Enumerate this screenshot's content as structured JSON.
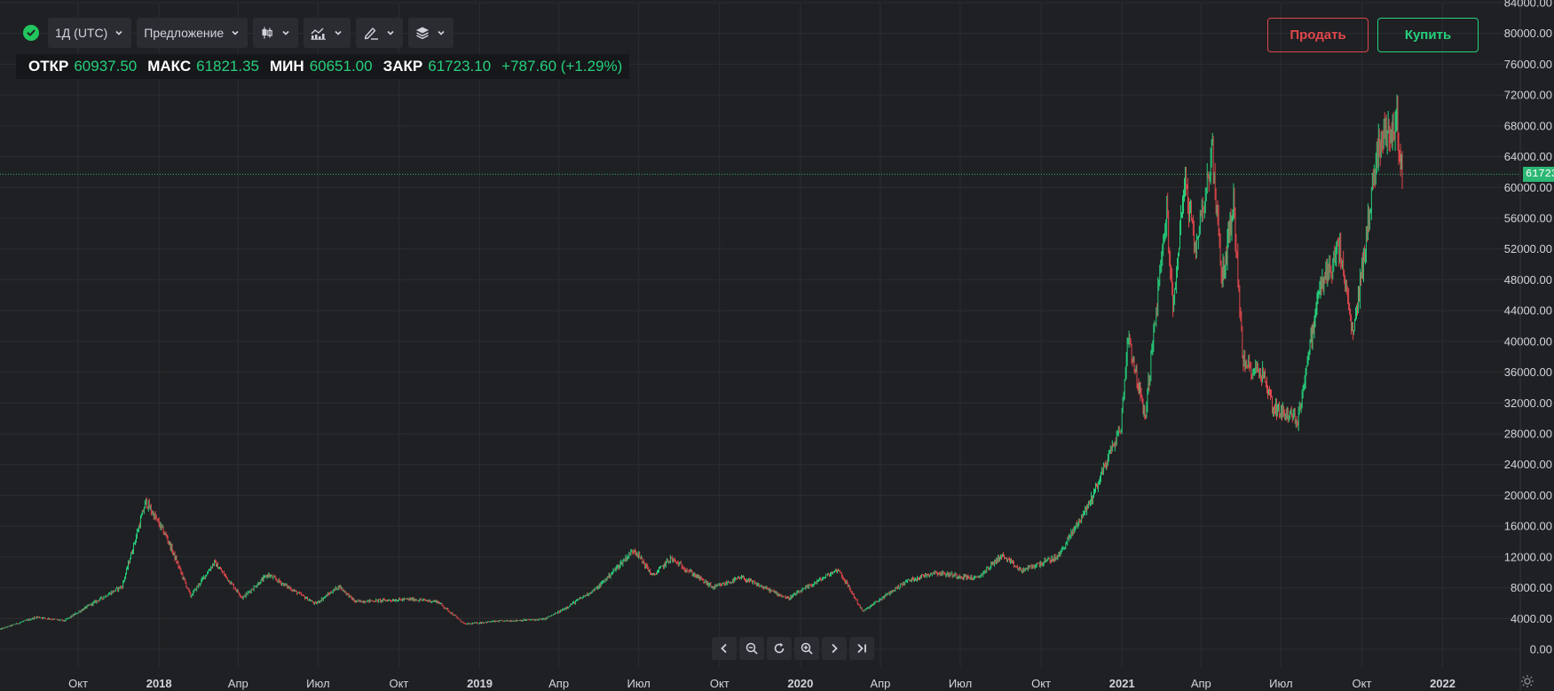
{
  "toolbar": {
    "status_icon": "check-circle-icon",
    "interval_label": "1Д (UTC)",
    "price_type_label": "Предложение",
    "chart_type_icon": "candlestick-icon",
    "indicators_icon": "indicators-icon",
    "drawing_icon": "pen-icon",
    "layers_icon": "layers-icon"
  },
  "ohlc": {
    "open_label": "ОТКР",
    "open_value": "60937.50",
    "high_label": "МАКС",
    "high_value": "61821.35",
    "low_label": "МИН",
    "low_value": "60651.00",
    "close_label": "ЗАКР",
    "close_value": "61723.10",
    "change": "+787.60 (+1.29%)"
  },
  "buttons": {
    "sell": "Продать",
    "buy": "Купить"
  },
  "colors": {
    "up": "#26d07c",
    "down": "#e0474c",
    "background": "#1f2023"
  },
  "last_price": "61723.10",
  "navigation": {
    "icons": [
      "chevron-left-icon",
      "zoom-out-icon",
      "reset-icon",
      "zoom-in-icon",
      "chevron-right-icon",
      "go-to-end-icon"
    ]
  },
  "chart_data": {
    "type": "candlestick",
    "title": "",
    "xlabel": "",
    "ylabel": "",
    "ylim": [
      0,
      84000
    ],
    "y_ticks": [
      "84000.00",
      "80000.00",
      "76000.00",
      "72000.00",
      "68000.00",
      "64000.00",
      "60000.00",
      "56000.00",
      "52000.00",
      "48000.00",
      "44000.00",
      "40000.00",
      "36000.00",
      "32000.00",
      "28000.00",
      "24000.00",
      "20000.00",
      "16000.00",
      "12000.00",
      "8000.00",
      "4000.00",
      "0.00"
    ],
    "x_ticks": [
      {
        "label": "Окт",
        "date": "2017-10"
      },
      {
        "label": "2018",
        "date": "2018-01",
        "bold": true
      },
      {
        "label": "Апр",
        "date": "2018-04"
      },
      {
        "label": "Июл",
        "date": "2018-07"
      },
      {
        "label": "Окт",
        "date": "2018-10"
      },
      {
        "label": "2019",
        "date": "2019-01",
        "bold": true
      },
      {
        "label": "Апр",
        "date": "2019-04"
      },
      {
        "label": "Июл",
        "date": "2019-07"
      },
      {
        "label": "Окт",
        "date": "2019-10"
      },
      {
        "label": "2020",
        "date": "2020-01",
        "bold": true
      },
      {
        "label": "Апр",
        "date": "2020-04"
      },
      {
        "label": "Июл",
        "date": "2020-07"
      },
      {
        "label": "Окт",
        "date": "2020-10"
      },
      {
        "label": "2021",
        "date": "2021-01",
        "bold": true
      },
      {
        "label": "Апр",
        "date": "2021-04"
      },
      {
        "label": "Июл",
        "date": "2021-07"
      },
      {
        "label": "Окт",
        "date": "2021-10"
      },
      {
        "label": "2022",
        "date": "2022-01",
        "bold": true
      }
    ],
    "x_range": [
      "2017-07-04",
      "2021-11-16"
    ],
    "last_close": 61723.1,
    "price_path": [
      [
        "2017-07-04",
        2600
      ],
      [
        "2017-08-15",
        4200
      ],
      [
        "2017-09-15",
        3700
      ],
      [
        "2017-10-15",
        5800
      ],
      [
        "2017-11-20",
        8200
      ],
      [
        "2017-12-17",
        19200
      ],
      [
        "2018-01-10",
        14500
      ],
      [
        "2018-02-06",
        6900
      ],
      [
        "2018-03-05",
        11300
      ],
      [
        "2018-04-06",
        6700
      ],
      [
        "2018-05-05",
        9700
      ],
      [
        "2018-06-28",
        5900
      ],
      [
        "2018-07-25",
        8200
      ],
      [
        "2018-08-12",
        6200
      ],
      [
        "2018-10-15",
        6500
      ],
      [
        "2018-11-14",
        6200
      ],
      [
        "2018-12-15",
        3250
      ],
      [
        "2019-01-15",
        3600
      ],
      [
        "2019-03-15",
        3900
      ],
      [
        "2019-04-02",
        4900
      ],
      [
        "2019-05-15",
        8000
      ],
      [
        "2019-06-26",
        13000
      ],
      [
        "2019-07-17",
        9500
      ],
      [
        "2019-08-06",
        11800
      ],
      [
        "2019-09-24",
        8000
      ],
      [
        "2019-10-26",
        9300
      ],
      [
        "2019-12-18",
        6600
      ],
      [
        "2020-02-13",
        10400
      ],
      [
        "2020-03-12",
        4900
      ],
      [
        "2020-04-30",
        8800
      ],
      [
        "2020-06-01",
        10000
      ],
      [
        "2020-07-20",
        9200
      ],
      [
        "2020-08-17",
        12200
      ],
      [
        "2020-09-08",
        10200
      ],
      [
        "2020-10-20",
        12000
      ],
      [
        "2020-11-25",
        19000
      ],
      [
        "2020-12-31",
        29000
      ],
      [
        "2021-01-08",
        41000
      ],
      [
        "2021-01-27",
        30000
      ],
      [
        "2021-02-21",
        57000
      ],
      [
        "2021-02-28",
        44000
      ],
      [
        "2021-03-13",
        61000
      ],
      [
        "2021-03-25",
        52000
      ],
      [
        "2021-04-14",
        64500
      ],
      [
        "2021-04-25",
        48000
      ],
      [
        "2021-05-08",
        58000
      ],
      [
        "2021-05-19",
        37000
      ],
      [
        "2021-06-10",
        36000
      ],
      [
        "2021-06-22",
        31500
      ],
      [
        "2021-07-20",
        29800
      ],
      [
        "2021-08-14",
        47000
      ],
      [
        "2021-09-06",
        52000
      ],
      [
        "2021-09-21",
        40500
      ],
      [
        "2021-10-20",
        66000
      ],
      [
        "2021-11-10",
        68500
      ],
      [
        "2021-11-16",
        61723
      ]
    ]
  }
}
